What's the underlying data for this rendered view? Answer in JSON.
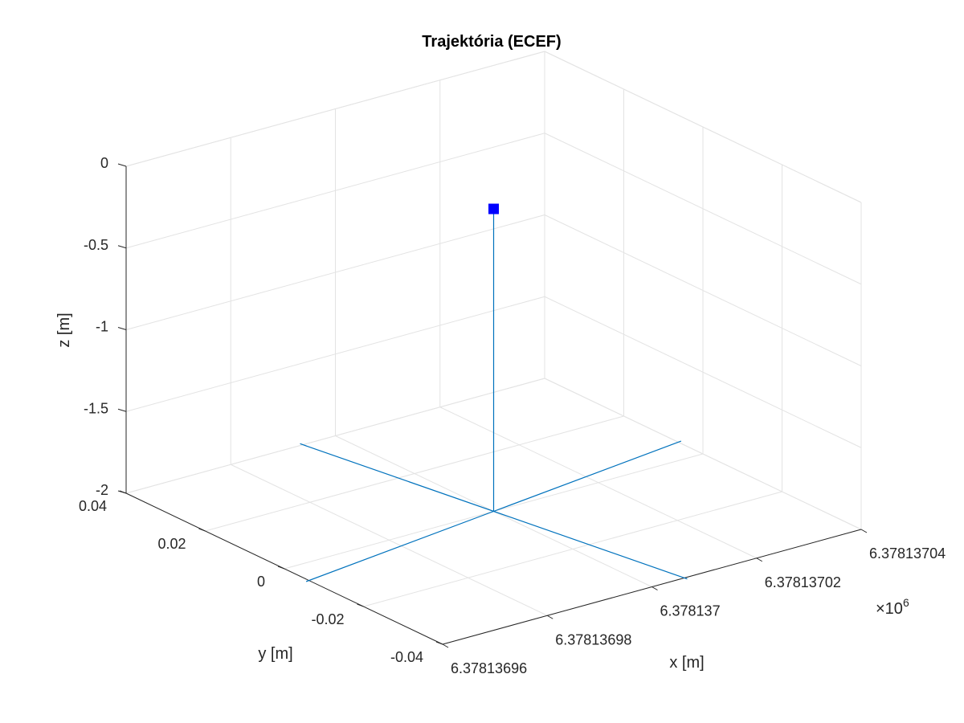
{
  "chart_data": {
    "type": "line",
    "projection": "3d",
    "title": "Trajektória (ECEF)",
    "xlabel": "x [m]",
    "ylabel": "y [m]",
    "zlabel": "z [m]",
    "x_exponent_label": "×10",
    "x_exponent_power": "6",
    "grid": true,
    "x_ticks": [
      {
        "value": 6378136.96,
        "label": "6.37813696"
      },
      {
        "value": 6378136.98,
        "label": "6.37813698"
      },
      {
        "value": 6378137.0,
        "label": "6.378137"
      },
      {
        "value": 6378137.02,
        "label": "6.37813702"
      },
      {
        "value": 6378137.04,
        "label": "6.37813704"
      }
    ],
    "y_ticks": [
      {
        "value": -0.04,
        "label": "-0.04"
      },
      {
        "value": -0.02,
        "label": "-0.02"
      },
      {
        "value": 0,
        "label": "0"
      },
      {
        "value": 0.02,
        "label": "0.02"
      },
      {
        "value": 0.04,
        "label": "0.04"
      }
    ],
    "z_ticks": [
      {
        "value": -2,
        "label": "-2"
      },
      {
        "value": -1.5,
        "label": "-1.5"
      },
      {
        "value": -1,
        "label": "-1"
      },
      {
        "value": -0.5,
        "label": "-0.5"
      },
      {
        "value": 0,
        "label": "0"
      }
    ],
    "xlim": [
      6378136.96,
      6378137.04
    ],
    "ylim": [
      -0.04,
      0.04
    ],
    "zlim": [
      -2,
      0
    ],
    "series": [
      {
        "color": "#0072BD",
        "segments": [
          [
            [
              6378137.0,
              0.0,
              -2.0
            ],
            [
              6378137.0,
              0.0,
              -0.15
            ]
          ],
          [
            [
              6378137.0,
              0.0,
              -2.0
            ],
            [
              6378137.0406,
              0.0063,
              -2.0
            ]
          ],
          [
            [
              6378137.0,
              0.0,
              -2.0
            ],
            [
              6378136.9594,
              -0.0063,
              -2.0
            ]
          ],
          [
            [
              6378137.0,
              0.0,
              -2.0
            ],
            [
              6378136.9937,
              0.0406,
              -2.0
            ]
          ],
          [
            [
              6378137.0,
              0.0,
              -2.0
            ],
            [
              6378137.0063,
              -0.0406,
              -2.0
            ]
          ]
        ]
      }
    ],
    "markers": [
      {
        "shape": "square",
        "color": "#0000FF",
        "point": [
          6378137.0,
          0.0,
          -0.15
        ]
      }
    ]
  }
}
